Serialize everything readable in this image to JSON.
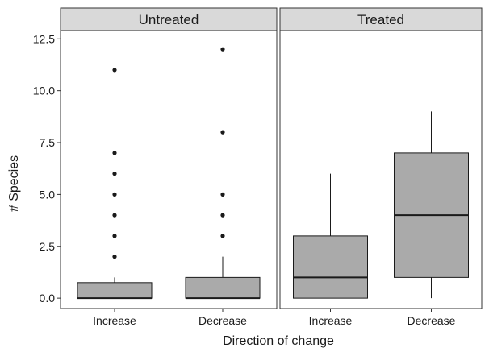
{
  "chart_data": {
    "type": "boxplot",
    "xlabel": "Direction of change",
    "ylabel": "# Species",
    "ylim": [
      -0.5,
      12.9
    ],
    "yticks": [
      "0.0",
      "2.5",
      "5.0",
      "7.5",
      "10.0",
      "12.5"
    ],
    "categories": [
      "Increase",
      "Decrease"
    ],
    "grid": false,
    "colors": {
      "box_fill": "#aaaaaa",
      "strip_fill": "#d9d9d9",
      "line": "#1a1a1a",
      "border": "#333333"
    },
    "panels": [
      {
        "title": "Untreated",
        "boxes": [
          {
            "category": "Increase",
            "min": 0,
            "q1": 0,
            "median": 0,
            "q3": 0.75,
            "max": 1,
            "outliers": [
              2,
              3,
              4,
              5,
              6,
              7,
              11
            ]
          },
          {
            "category": "Decrease",
            "min": 0,
            "q1": 0,
            "median": 0,
            "q3": 1,
            "max": 2,
            "outliers": [
              3,
              4,
              5,
              8,
              12
            ]
          }
        ]
      },
      {
        "title": "Treated",
        "boxes": [
          {
            "category": "Increase",
            "min": 0,
            "q1": 0,
            "median": 1,
            "q3": 3,
            "max": 6,
            "outliers": []
          },
          {
            "category": "Decrease",
            "min": 0,
            "q1": 1,
            "median": 4,
            "q3": 7,
            "max": 9,
            "outliers": []
          }
        ]
      }
    ]
  }
}
